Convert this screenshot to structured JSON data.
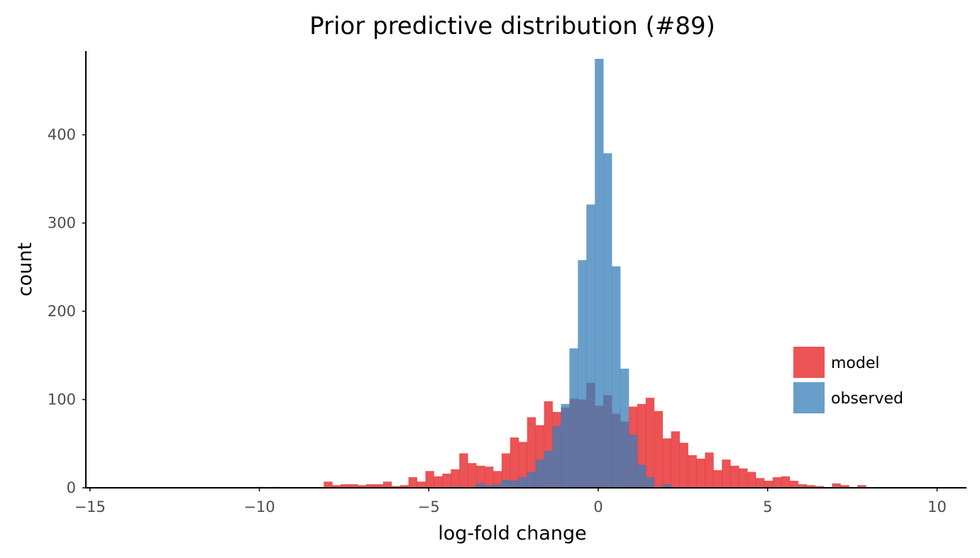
{
  "chart_data": {
    "type": "bar",
    "subtype": "overlapping-histogram",
    "title": "Prior predictive distribution (#89)",
    "xlabel": "log-fold change",
    "ylabel": "count",
    "xlim": [
      -15,
      10.8
    ],
    "ylim": [
      0,
      490
    ],
    "xticks": [
      -15,
      -10,
      -5,
      0,
      5,
      10
    ],
    "xtick_labels": [
      "−15",
      "−10",
      "−5",
      "0",
      "5",
      "10"
    ],
    "yticks": [
      0,
      100,
      200,
      300,
      400
    ],
    "ytick_labels": [
      "0",
      "100",
      "200",
      "300",
      "400"
    ],
    "grid": false,
    "legend_position": "right",
    "bin_width": 0.25,
    "series": [
      {
        "name": "model",
        "color": "#e41a1c",
        "opacity": 0.75,
        "bins": [
          {
            "x0": -10.1,
            "x1": -9.85,
            "count": 1
          },
          {
            "x0": -9.6,
            "x1": -9.35,
            "count": 1
          },
          {
            "x0": -8.1,
            "x1": -7.85,
            "count": 7
          },
          {
            "x0": -7.85,
            "x1": -7.6,
            "count": 3
          },
          {
            "x0": -7.6,
            "x1": -7.35,
            "count": 4
          },
          {
            "x0": -7.35,
            "x1": -7.1,
            "count": 4
          },
          {
            "x0": -7.1,
            "x1": -6.85,
            "count": 3
          },
          {
            "x0": -6.85,
            "x1": -6.6,
            "count": 4
          },
          {
            "x0": -6.6,
            "x1": -6.35,
            "count": 4
          },
          {
            "x0": -6.35,
            "x1": -6.1,
            "count": 7
          },
          {
            "x0": -6.1,
            "x1": -5.85,
            "count": 2
          },
          {
            "x0": -5.85,
            "x1": -5.6,
            "count": 3
          },
          {
            "x0": -5.6,
            "x1": -5.35,
            "count": 12
          },
          {
            "x0": -5.35,
            "x1": -5.1,
            "count": 7
          },
          {
            "x0": -5.1,
            "x1": -4.85,
            "count": 19
          },
          {
            "x0": -4.85,
            "x1": -4.6,
            "count": 13
          },
          {
            "x0": -4.6,
            "x1": -4.35,
            "count": 16
          },
          {
            "x0": -4.35,
            "x1": -4.1,
            "count": 21
          },
          {
            "x0": -4.1,
            "x1": -3.85,
            "count": 39
          },
          {
            "x0": -3.85,
            "x1": -3.6,
            "count": 28
          },
          {
            "x0": -3.6,
            "x1": -3.35,
            "count": 25
          },
          {
            "x0": -3.35,
            "x1": -3.1,
            "count": 24
          },
          {
            "x0": -3.1,
            "x1": -2.85,
            "count": 19
          },
          {
            "x0": -2.85,
            "x1": -2.6,
            "count": 39
          },
          {
            "x0": -2.6,
            "x1": -2.35,
            "count": 57
          },
          {
            "x0": -2.35,
            "x1": -2.1,
            "count": 52
          },
          {
            "x0": -2.1,
            "x1": -1.85,
            "count": 80
          },
          {
            "x0": -1.85,
            "x1": -1.6,
            "count": 71
          },
          {
            "x0": -1.6,
            "x1": -1.35,
            "count": 98
          },
          {
            "x0": -1.35,
            "x1": -1.1,
            "count": 86
          },
          {
            "x0": -1.1,
            "x1": -0.85,
            "count": 91
          },
          {
            "x0": -0.85,
            "x1": -0.6,
            "count": 101
          },
          {
            "x0": -0.6,
            "x1": -0.35,
            "count": 100
          },
          {
            "x0": -0.35,
            "x1": -0.1,
            "count": 119
          },
          {
            "x0": -0.1,
            "x1": 0.15,
            "count": 93
          },
          {
            "x0": 0.15,
            "x1": 0.4,
            "count": 105
          },
          {
            "x0": 0.4,
            "x1": 0.65,
            "count": 84
          },
          {
            "x0": 0.65,
            "x1": 0.9,
            "count": 75
          },
          {
            "x0": 0.9,
            "x1": 1.15,
            "count": 92
          },
          {
            "x0": 1.15,
            "x1": 1.4,
            "count": 95
          },
          {
            "x0": 1.4,
            "x1": 1.65,
            "count": 102
          },
          {
            "x0": 1.65,
            "x1": 1.9,
            "count": 87
          },
          {
            "x0": 1.9,
            "x1": 2.15,
            "count": 56
          },
          {
            "x0": 2.15,
            "x1": 2.4,
            "count": 64
          },
          {
            "x0": 2.4,
            "x1": 2.65,
            "count": 51
          },
          {
            "x0": 2.65,
            "x1": 2.9,
            "count": 37
          },
          {
            "x0": 2.9,
            "x1": 3.15,
            "count": 33
          },
          {
            "x0": 3.15,
            "x1": 3.4,
            "count": 40
          },
          {
            "x0": 3.4,
            "x1": 3.65,
            "count": 20
          },
          {
            "x0": 3.65,
            "x1": 3.9,
            "count": 32
          },
          {
            "x0": 3.9,
            "x1": 4.15,
            "count": 25
          },
          {
            "x0": 4.15,
            "x1": 4.4,
            "count": 22
          },
          {
            "x0": 4.4,
            "x1": 4.65,
            "count": 18
          },
          {
            "x0": 4.65,
            "x1": 4.9,
            "count": 11
          },
          {
            "x0": 4.9,
            "x1": 5.15,
            "count": 8
          },
          {
            "x0": 5.15,
            "x1": 5.4,
            "count": 12
          },
          {
            "x0": 5.4,
            "x1": 5.65,
            "count": 13
          },
          {
            "x0": 5.65,
            "x1": 5.9,
            "count": 8
          },
          {
            "x0": 5.9,
            "x1": 6.15,
            "count": 4
          },
          {
            "x0": 6.15,
            "x1": 6.4,
            "count": 3
          },
          {
            "x0": 6.4,
            "x1": 6.65,
            "count": 2
          },
          {
            "x0": 6.9,
            "x1": 7.15,
            "count": 5
          },
          {
            "x0": 7.15,
            "x1": 7.4,
            "count": 3
          },
          {
            "x0": 7.65,
            "x1": 7.9,
            "count": 3
          }
        ]
      },
      {
        "name": "observed",
        "color": "#377eb8",
        "opacity": 0.75,
        "bins": [
          {
            "x0": -4.35,
            "x1": -4.1,
            "count": 1
          },
          {
            "x0": -4.1,
            "x1": -3.85,
            "count": 1
          },
          {
            "x0": -3.6,
            "x1": -3.35,
            "count": 5
          },
          {
            "x0": -3.35,
            "x1": -3.1,
            "count": 3
          },
          {
            "x0": -3.1,
            "x1": -2.85,
            "count": 4
          },
          {
            "x0": -2.85,
            "x1": -2.6,
            "count": 9
          },
          {
            "x0": -2.6,
            "x1": -2.35,
            "count": 8
          },
          {
            "x0": -2.35,
            "x1": -2.1,
            "count": 12
          },
          {
            "x0": -2.1,
            "x1": -1.85,
            "count": 18
          },
          {
            "x0": -1.85,
            "x1": -1.6,
            "count": 32
          },
          {
            "x0": -1.6,
            "x1": -1.35,
            "count": 42
          },
          {
            "x0": -1.35,
            "x1": -1.1,
            "count": 70
          },
          {
            "x0": -1.1,
            "x1": -0.85,
            "count": 95
          },
          {
            "x0": -0.85,
            "x1": -0.6,
            "count": 158
          },
          {
            "x0": -0.6,
            "x1": -0.35,
            "count": 258
          },
          {
            "x0": -0.35,
            "x1": -0.1,
            "count": 321
          },
          {
            "x0": -0.1,
            "x1": 0.15,
            "count": 486
          },
          {
            "x0": 0.15,
            "x1": 0.4,
            "count": 379
          },
          {
            "x0": 0.4,
            "x1": 0.65,
            "count": 251
          },
          {
            "x0": 0.65,
            "x1": 0.9,
            "count": 135
          },
          {
            "x0": 0.9,
            "x1": 1.15,
            "count": 60
          },
          {
            "x0": 1.15,
            "x1": 1.4,
            "count": 26
          },
          {
            "x0": 1.4,
            "x1": 1.65,
            "count": 12
          },
          {
            "x0": 1.65,
            "x1": 1.9,
            "count": 1
          },
          {
            "x0": 1.9,
            "x1": 2.15,
            "count": 4
          }
        ]
      }
    ]
  }
}
